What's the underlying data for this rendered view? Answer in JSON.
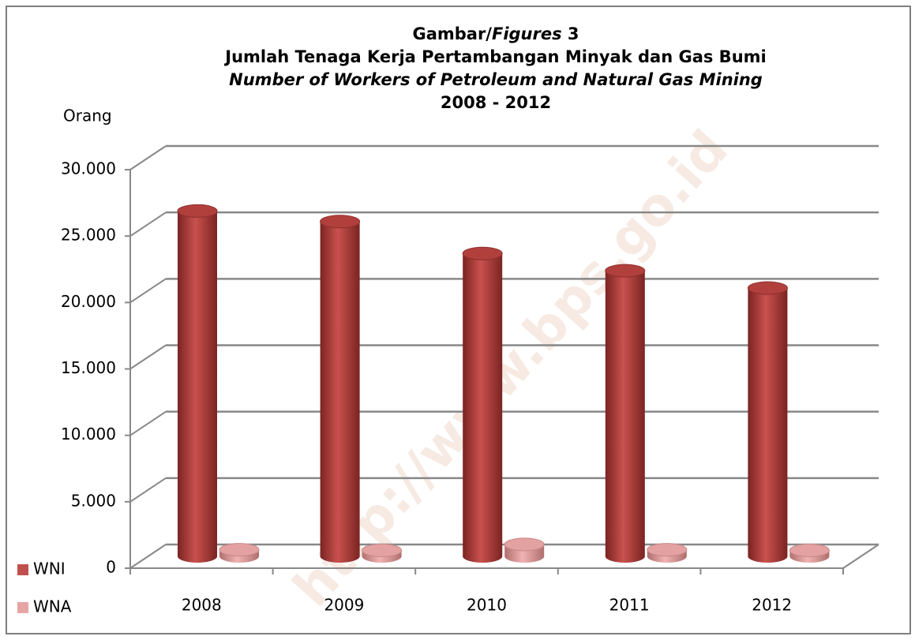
{
  "chart_data": {
    "type": "bar3d",
    "title": [
      [
        "Gambar/",
        "Figures",
        " 3"
      ],
      "Jumlah Tenaga Kerja Pertambangan Minyak dan Gas Bumi",
      "Number of Workers of Petroleum and Natural Gas Mining",
      "2008 - 2012"
    ],
    "y_label": "Orang",
    "watermark": "http://www.bps.go.id",
    "categories": [
      "2008",
      "2009",
      "2010",
      "2011",
      "2012"
    ],
    "series": [
      {
        "name": "WNI",
        "color": "#c0504d",
        "values": [
          26000,
          25200,
          22800,
          21500,
          20200
        ]
      },
      {
        "name": "WNA",
        "color": "#e6a5a4",
        "values": [
          500,
          450,
          900,
          500,
          450
        ]
      }
    ],
    "ylim": [
      0,
      30000
    ],
    "yticks": [
      0,
      {
        "value": 5000,
        "label": "5.000"
      },
      {
        "value": 10000,
        "label": "10.000"
      },
      {
        "value": 15000,
        "label": "15.000"
      },
      {
        "value": 20000,
        "label": "20.000"
      },
      {
        "value": 25000,
        "label": "25.000"
      },
      {
        "value": 30000,
        "label": "30.000"
      }
    ],
    "grid": true,
    "legend": "bottom-left"
  }
}
